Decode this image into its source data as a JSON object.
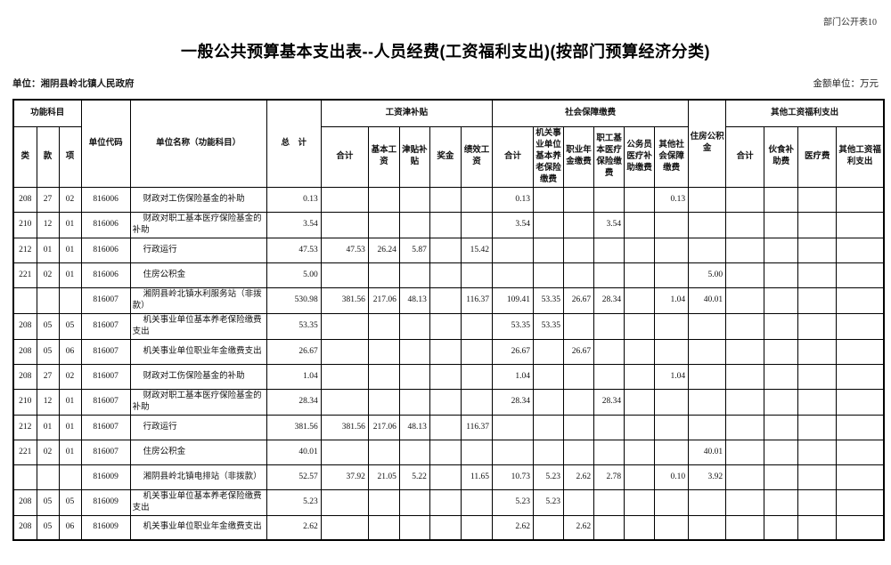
{
  "page": {
    "corner_label": "部门公开表10",
    "title": "一般公共预算基本支出表--人员经费(工资福利支出)(按部门预算经济分类)",
    "unit_label": "单位：湘阴县岭北镇人民政府",
    "amount_unit_label": "金额单位：万元"
  },
  "table": {
    "header": {
      "func_group": "功能科目",
      "lei": "类",
      "kuan": "款",
      "xiang": "项",
      "unit_code": "单位代码",
      "unit_name": "单位名称（功能科目）",
      "total": "总　计",
      "wage_group": "工资津补贴",
      "wage_sub": [
        "合计",
        "基本工资",
        "津贴补贴",
        "奖金",
        "绩效工资"
      ],
      "social_group": "社会保障缴费",
      "social_sub": [
        "合计",
        "机关事业单位基本养老保险缴费",
        "职业年金缴费",
        "职工基本医疗保险缴费",
        "公务员医疗补助缴费",
        "其他社会保障缴费"
      ],
      "housing": "住房公积金",
      "other_group": "其他工资福利支出",
      "other_sub": [
        "合计",
        "伙食补助费",
        "医疗费",
        "其他工资福利支出"
      ]
    },
    "rows": [
      [
        "208",
        "27",
        "02",
        "816006",
        "财政对工伤保险基金的补助",
        "0.13",
        "",
        "",
        "",
        "",
        "",
        "0.13",
        "",
        "",
        "",
        "",
        "0.13",
        "",
        "",
        "",
        "",
        ""
      ],
      [
        "210",
        "12",
        "01",
        "816006",
        "财政对职工基本医疗保险基金的补助",
        "3.54",
        "",
        "",
        "",
        "",
        "",
        "3.54",
        "",
        "",
        "3.54",
        "",
        "",
        "",
        "",
        "",
        "",
        ""
      ],
      [
        "212",
        "01",
        "01",
        "816006",
        "行政运行",
        "47.53",
        "47.53",
        "26.24",
        "5.87",
        "",
        "15.42",
        "",
        "",
        "",
        "",
        "",
        "",
        "",
        "",
        "",
        "",
        ""
      ],
      [
        "221",
        "02",
        "01",
        "816006",
        "住房公积金",
        "5.00",
        "",
        "",
        "",
        "",
        "",
        "",
        "",
        "",
        "",
        "",
        "",
        "5.00",
        "",
        "",
        "",
        ""
      ],
      [
        "",
        "",
        "",
        "816007",
        "湘阴县岭北镇水利服务站（非拨款）",
        "530.98",
        "381.56",
        "217.06",
        "48.13",
        "",
        "116.37",
        "109.41",
        "53.35",
        "26.67",
        "28.34",
        "",
        "1.04",
        "40.01",
        "",
        "",
        "",
        ""
      ],
      [
        "208",
        "05",
        "05",
        "816007",
        "机关事业单位基本养老保险缴费支出",
        "53.35",
        "",
        "",
        "",
        "",
        "",
        "53.35",
        "53.35",
        "",
        "",
        "",
        "",
        "",
        "",
        "",
        "",
        ""
      ],
      [
        "208",
        "05",
        "06",
        "816007",
        "机关事业单位职业年金缴费支出",
        "26.67",
        "",
        "",
        "",
        "",
        "",
        "26.67",
        "",
        "26.67",
        "",
        "",
        "",
        "",
        "",
        "",
        "",
        ""
      ],
      [
        "208",
        "27",
        "02",
        "816007",
        "财政对工伤保险基金的补助",
        "1.04",
        "",
        "",
        "",
        "",
        "",
        "1.04",
        "",
        "",
        "",
        "",
        "1.04",
        "",
        "",
        "",
        "",
        ""
      ],
      [
        "210",
        "12",
        "01",
        "816007",
        "财政对职工基本医疗保险基金的补助",
        "28.34",
        "",
        "",
        "",
        "",
        "",
        "28.34",
        "",
        "",
        "28.34",
        "",
        "",
        "",
        "",
        "",
        "",
        ""
      ],
      [
        "212",
        "01",
        "01",
        "816007",
        "行政运行",
        "381.56",
        "381.56",
        "217.06",
        "48.13",
        "",
        "116.37",
        "",
        "",
        "",
        "",
        "",
        "",
        "",
        "",
        "",
        "",
        ""
      ],
      [
        "221",
        "02",
        "01",
        "816007",
        "住房公积金",
        "40.01",
        "",
        "",
        "",
        "",
        "",
        "",
        "",
        "",
        "",
        "",
        "",
        "40.01",
        "",
        "",
        "",
        ""
      ],
      [
        "",
        "",
        "",
        "816009",
        "湘阴县岭北镇电排站（非拨款）",
        "52.57",
        "37.92",
        "21.05",
        "5.22",
        "",
        "11.65",
        "10.73",
        "5.23",
        "2.62",
        "2.78",
        "",
        "0.10",
        "3.92",
        "",
        "",
        "",
        ""
      ],
      [
        "208",
        "05",
        "05",
        "816009",
        "机关事业单位基本养老保险缴费支出",
        "5.23",
        "",
        "",
        "",
        "",
        "",
        "5.23",
        "5.23",
        "",
        "",
        "",
        "",
        "",
        "",
        "",
        "",
        ""
      ],
      [
        "208",
        "05",
        "06",
        "816009",
        "机关事业单位职业年金缴费支出",
        "2.62",
        "",
        "",
        "",
        "",
        "",
        "2.62",
        "",
        "2.62",
        "",
        "",
        "",
        "",
        "",
        "",
        "",
        ""
      ]
    ]
  }
}
